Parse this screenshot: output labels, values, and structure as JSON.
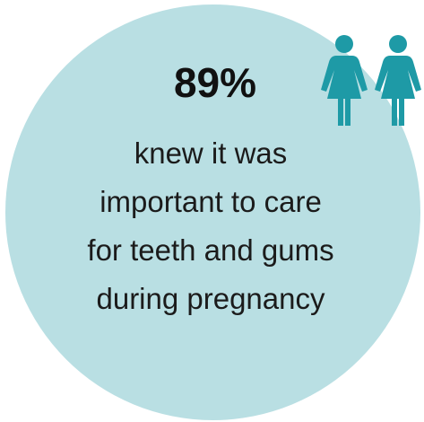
{
  "infographic": {
    "stat_value": "89%",
    "caption_lines": [
      "knew it was",
      "important to care",
      "for teeth and gums",
      "during pregnancy"
    ],
    "icons": [
      "woman-icon",
      "woman-icon"
    ]
  },
  "colors": {
    "circle_fill": "#b9dfe3",
    "icon_fill": "#1e9aa6",
    "text": "#111111"
  }
}
